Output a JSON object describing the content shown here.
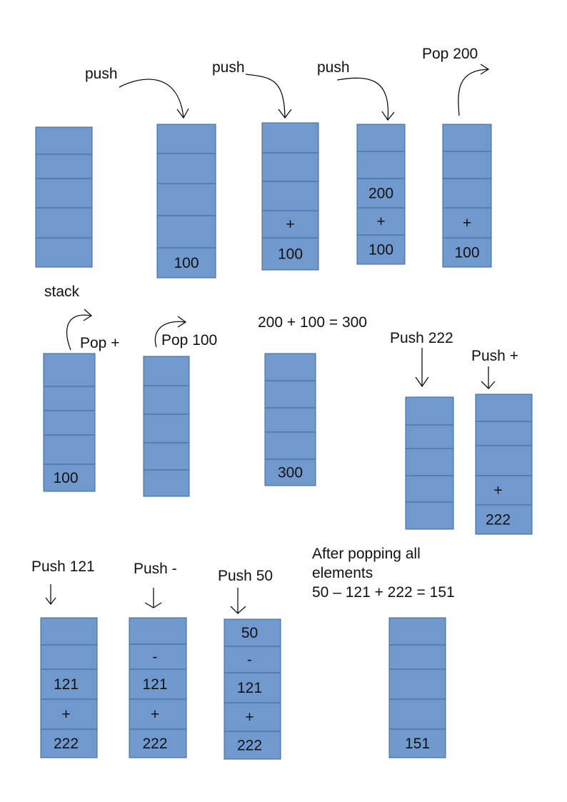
{
  "labels": {
    "push_1": "push",
    "push_2": "push",
    "push_3": "push",
    "pop_200": "Pop 200",
    "stack": "stack",
    "pop_plus": "Pop +",
    "pop_100": "Pop 100",
    "sum_1": "200 + 100 = 300",
    "push_222": "Push 222",
    "push_plus": "Push +",
    "push_121": "Push 121",
    "push_minus": "Push -",
    "push_50": "Push 50",
    "after_1": "After popping all",
    "after_2": "elements",
    "sum_2": "50 – 121 + 222 = 151"
  },
  "stacks": [
    {
      "name": "empty",
      "cells": [
        "",
        "",
        "",
        "",
        ""
      ]
    },
    {
      "name": "step-1",
      "cells": [
        "",
        "",
        "",
        "",
        "100"
      ]
    },
    {
      "name": "step-2",
      "cells": [
        "",
        "",
        "",
        "+",
        "100"
      ]
    },
    {
      "name": "step-3",
      "cells": [
        "",
        "",
        "200",
        "+",
        "100"
      ]
    },
    {
      "name": "step-4",
      "cells": [
        "",
        "",
        "",
        "+",
        "100"
      ]
    },
    {
      "name": "step-5",
      "cells": [
        "",
        "",
        "",
        "",
        "100"
      ]
    },
    {
      "name": "step-6",
      "cells": [
        "",
        "",
        "",
        "",
        ""
      ]
    },
    {
      "name": "step-7",
      "cells": [
        "",
        "",
        "",
        "",
        "300"
      ]
    },
    {
      "name": "step-8",
      "cells": [
        "",
        "",
        "",
        "",
        ""
      ]
    },
    {
      "name": "step-9",
      "cells": [
        "",
        "",
        "",
        "+",
        "222"
      ]
    },
    {
      "name": "step-10",
      "cells": [
        "",
        "",
        "121",
        "+",
        "222"
      ]
    },
    {
      "name": "step-11",
      "cells": [
        "",
        "-",
        "121",
        "+",
        "222"
      ]
    },
    {
      "name": "step-12",
      "cells": [
        "50",
        "-",
        "121",
        "+",
        "222"
      ]
    },
    {
      "name": "final",
      "cells": [
        "",
        "",
        "",
        "",
        "151"
      ]
    }
  ]
}
